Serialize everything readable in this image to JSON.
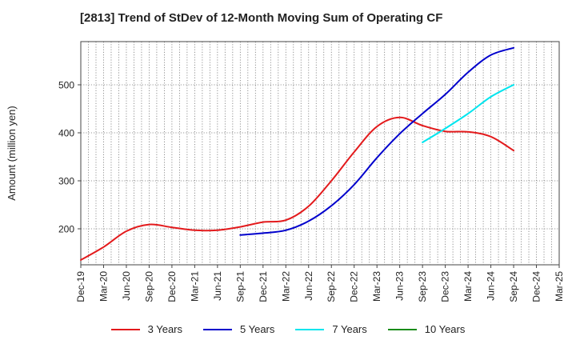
{
  "chart_data": {
    "type": "line",
    "title": "[2813]  Trend of StDev of 12-Month Moving Sum of Operating CF",
    "ylabel": "Amount (million yen)",
    "xlabel": "",
    "x": [
      "Dec-19",
      "Mar-20",
      "Jun-20",
      "Sep-20",
      "Dec-20",
      "Mar-21",
      "Jun-21",
      "Sep-21",
      "Dec-21",
      "Mar-22",
      "Jun-22",
      "Sep-22",
      "Dec-22",
      "Mar-23",
      "Jun-23",
      "Sep-23",
      "Dec-23",
      "Mar-24",
      "Jun-24",
      "Sep-24",
      "Dec-24",
      "Mar-25"
    ],
    "ylim": [
      125,
      590
    ],
    "yticks": [
      200,
      300,
      400,
      500
    ],
    "grid": true,
    "legend_position": "bottom",
    "series": [
      {
        "name": "3 Years",
        "color": "#e31a1c",
        "values": [
          135,
          162,
          195,
          209,
          203,
          197,
          197,
          204,
          214,
          218,
          247,
          300,
          360,
          413,
          432,
          415,
          403,
          402,
          392,
          363,
          null,
          null
        ]
      },
      {
        "name": "5 Years",
        "color": "#0000cc",
        "values": [
          null,
          null,
          null,
          null,
          null,
          null,
          null,
          187,
          191,
          197,
          216,
          248,
          292,
          348,
          398,
          440,
          480,
          526,
          562,
          577,
          null,
          null
        ]
      },
      {
        "name": "7 Years",
        "color": "#00e5ee",
        "values": [
          null,
          null,
          null,
          null,
          null,
          null,
          null,
          null,
          null,
          null,
          null,
          null,
          null,
          null,
          null,
          380,
          409,
          440,
          475,
          500,
          null,
          null
        ]
      },
      {
        "name": "10 Years",
        "color": "#1a8c1a",
        "values": [
          null,
          null,
          null,
          null,
          null,
          null,
          null,
          null,
          null,
          null,
          null,
          null,
          null,
          null,
          null,
          null,
          null,
          null,
          null,
          null,
          null,
          null
        ]
      }
    ]
  }
}
